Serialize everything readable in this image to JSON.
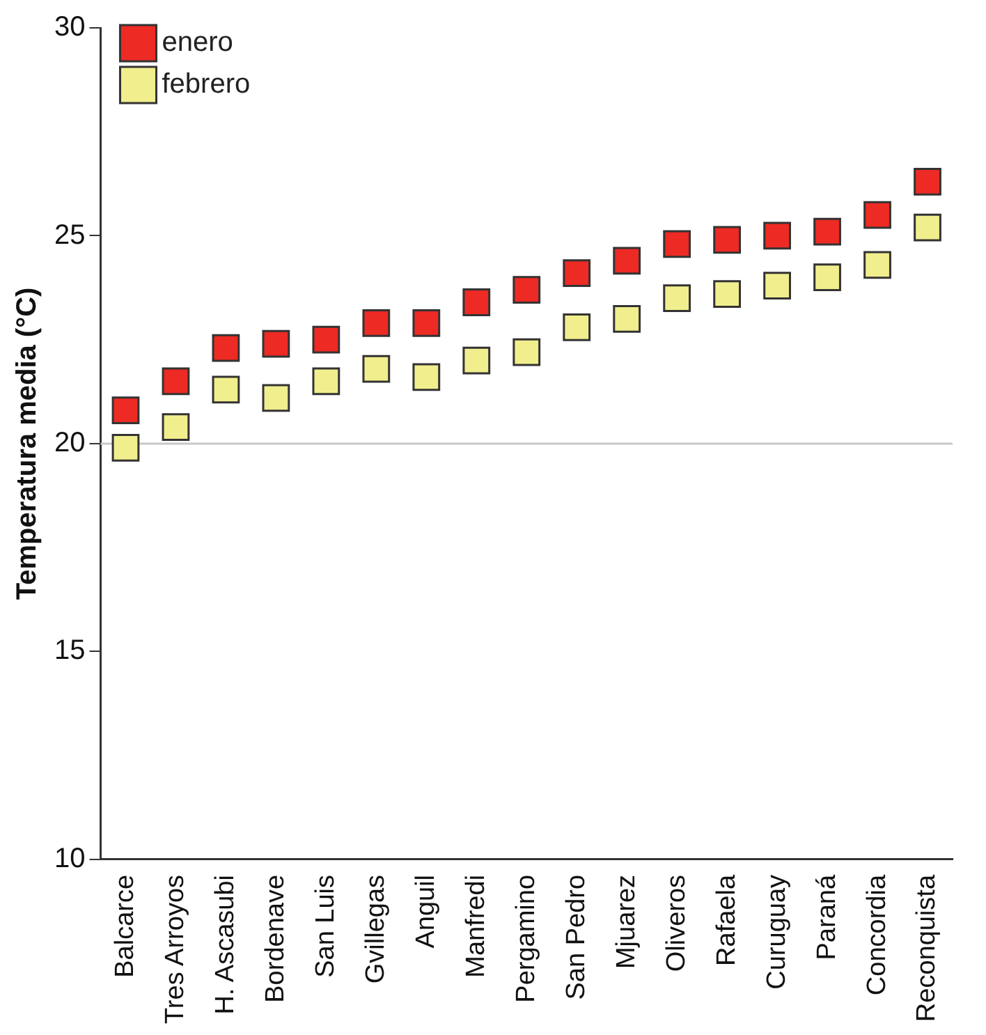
{
  "chart_data": {
    "type": "scatter",
    "ylabel": "Temperatura media (°C)",
    "categories": [
      "Balcarce",
      "Tres Arroyos",
      "H. Ascasubi",
      "Bordenave",
      "San Luis",
      "Gvillegas",
      "Anguil",
      "Manfredi",
      "Pergamino",
      "San Pedro",
      "Mjuarez",
      "Oliveros",
      "Rafaela",
      "Curuguay",
      "Paraná",
      "Concordia",
      "Reconquista"
    ],
    "series": [
      {
        "name": "enero",
        "color": "#ee2a24",
        "values": [
          20.8,
          21.5,
          22.3,
          22.4,
          22.5,
          22.9,
          22.9,
          23.4,
          23.7,
          24.1,
          24.4,
          24.8,
          24.9,
          25.0,
          25.1,
          25.5,
          26.3
        ]
      },
      {
        "name": "febrero",
        "color": "#f1ee8e",
        "values": [
          19.9,
          20.4,
          21.3,
          21.1,
          21.5,
          21.8,
          21.6,
          22.0,
          22.2,
          22.8,
          23.0,
          23.5,
          23.6,
          23.8,
          24.0,
          24.3,
          25.2
        ]
      }
    ],
    "ylim": [
      10,
      30
    ],
    "yticks": [
      10,
      15,
      20,
      25,
      30
    ],
    "grid": false,
    "legend": "top left",
    "marker": "square",
    "ref_lines": [
      {
        "axis": "y",
        "value": 20,
        "color": "#c8c8c8"
      }
    ]
  }
}
